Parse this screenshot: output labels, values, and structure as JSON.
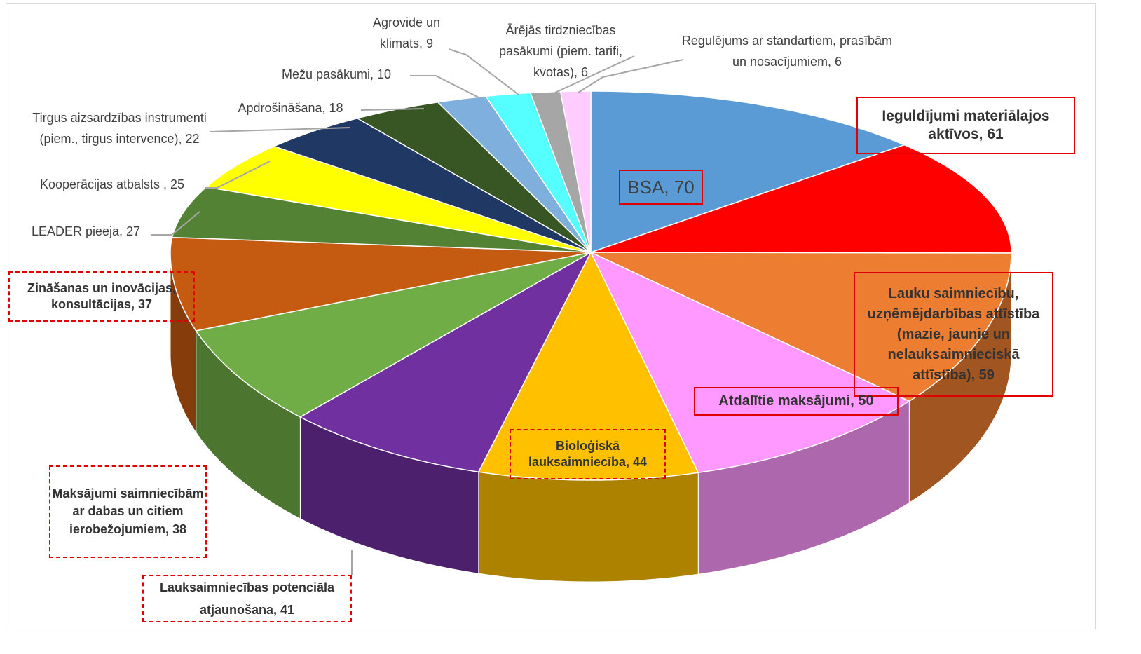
{
  "chart_data": {
    "type": "pie3d",
    "values": [
      70,
      61,
      59,
      50,
      44,
      41,
      38,
      37,
      27,
      25,
      22,
      18,
      10,
      9,
      6,
      6
    ],
    "value_labels": [
      "BSA, 70",
      "Ieguldījumi materiālajos aktīvos, 61",
      "Lauku saimniecību, uzņēmējdarbības attīstība  (mazie, jaunie un nelauksaimnieciskā attīstība), 59",
      "Atdalītie maksājumi, 50",
      "Bioloģiskā lauksaimniecība, 44",
      "Lauksaimniecības potenciāla atjaunošana, 41",
      "Maksājumi saimniecībām ar dabas un citiem ierobežojumiem, 38",
      "Zināšanas un inovācijas, konsultācijas, 37",
      "LEADER pieeja, 27",
      "Kooperācijas atbalsts , 25",
      "Tirgus aizsardzības instrumenti (piem., tirgus intervence), 22",
      "Apdrošināšana, 18",
      "Mežu pasākumi, 10",
      "Agrovide un klimats, 9",
      "Ārējās tirdzniecības pasākumi (piem. tarifi, kvotas), 6",
      "Regulējums ar standartiem, prasībām un nosacījumiem, 6"
    ],
    "colors": [
      "#5b9bd5",
      "#ff0000",
      "#ed7d31",
      "#ff99ff",
      "#ffc000",
      "#7030a0",
      "#70ad47",
      "#c55a11",
      "#548235",
      "#ffff00",
      "#203864",
      "#375623",
      "#7fb0dd",
      "#55ffff",
      "#a6a6a6",
      "#ffccff"
    ]
  }
}
